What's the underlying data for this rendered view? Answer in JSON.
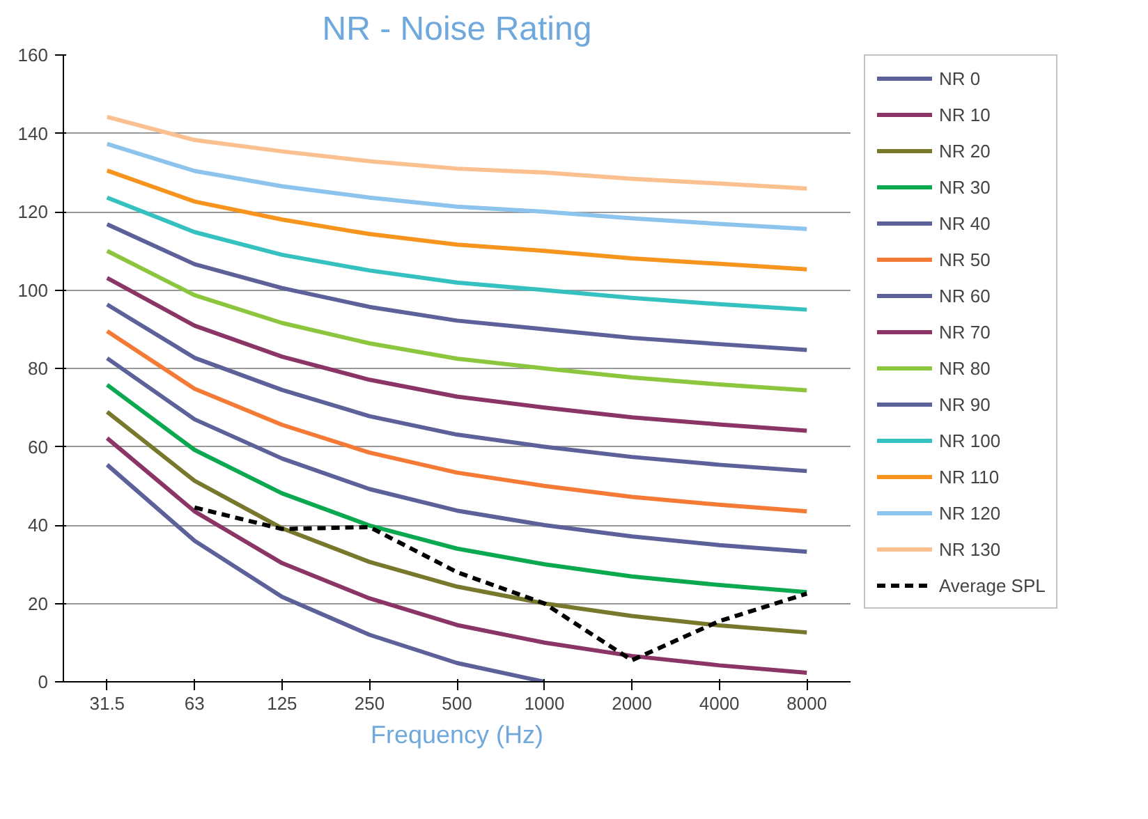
{
  "chart_data": {
    "type": "line",
    "title": "NR - Noise Rating",
    "xlabel": "Frequency (Hz)",
    "categories": [
      "31.5",
      "63",
      "125",
      "250",
      "500",
      "1000",
      "2000",
      "4000",
      "8000"
    ],
    "ylim": [
      0,
      160
    ],
    "yticks": [
      0,
      20,
      40,
      60,
      80,
      100,
      120,
      140,
      160
    ],
    "grid": "y",
    "legend": "right",
    "marker": "none",
    "line_style": "solid",
    "series": [
      {
        "name": "NR 0",
        "color": "#5d6199",
        "values": [
          55.4,
          36,
          21.7,
          12,
          4.8,
          0,
          null,
          null,
          null
        ]
      },
      {
        "name": "NR 10",
        "color": "#8b3567",
        "values": [
          62.2,
          43.5,
          30.3,
          21.3,
          14.5,
          10,
          6.6,
          4.2,
          2.3
        ]
      },
      {
        "name": "NR 20",
        "color": "#77782b",
        "values": [
          68.9,
          51.3,
          39.2,
          30.6,
          24.3,
          20,
          16.8,
          14.4,
          12.6
        ]
      },
      {
        "name": "NR 30",
        "color": "#0aa84f",
        "values": [
          75.8,
          59.2,
          48.1,
          39.9,
          34,
          30,
          26.9,
          24.7,
          22.9
        ]
      },
      {
        "name": "NR 40",
        "color": "#5d6199",
        "values": [
          82.6,
          67,
          57,
          49.2,
          43.7,
          40,
          37.1,
          34.9,
          33.2
        ]
      },
      {
        "name": "NR 50",
        "color": "#f47a35",
        "values": [
          89.5,
          74.8,
          65.6,
          58.5,
          53.4,
          50,
          47.2,
          45.2,
          43.5
        ]
      },
      {
        "name": "NR 60",
        "color": "#5d6199",
        "values": [
          96.3,
          82.7,
          74.5,
          67.8,
          63.1,
          60,
          57.4,
          55.4,
          53.8
        ]
      },
      {
        "name": "NR 70",
        "color": "#8b3567",
        "values": [
          103.1,
          90.9,
          83,
          77.1,
          72.8,
          70,
          67.5,
          65.7,
          64.1
        ]
      },
      {
        "name": "NR 80",
        "color": "#8cc63e",
        "values": [
          110,
          98.7,
          91.6,
          86.4,
          82.5,
          80,
          77.7,
          75.9,
          74.4
        ]
      },
      {
        "name": "NR 90",
        "color": "#5d6199",
        "values": [
          116.8,
          106.6,
          100.5,
          95.7,
          92.2,
          90,
          87.8,
          86.2,
          84.7
        ]
      },
      {
        "name": "NR 100",
        "color": "#35c1c0",
        "values": [
          123.6,
          114.8,
          109,
          105,
          101.9,
          100,
          98,
          96.4,
          95
        ]
      },
      {
        "name": "NR 110",
        "color": "#f7941d",
        "values": [
          130.5,
          122.6,
          118,
          114.3,
          111.6,
          110,
          108.1,
          106.7,
          105.3
        ]
      },
      {
        "name": "NR 120",
        "color": "#8dc4ee",
        "values": [
          137.3,
          130.4,
          126.5,
          123.6,
          121.3,
          120,
          118.3,
          116.9,
          115.6
        ]
      },
      {
        "name": "NR 130",
        "color": "#fbc08f",
        "values": [
          144.2,
          138.3,
          135.4,
          132.9,
          131,
          130,
          128.4,
          127.2,
          125.9
        ]
      },
      {
        "name": "Average SPL",
        "color": "#000000",
        "line_style": "dashed",
        "values": [
          null,
          44.5,
          39,
          39.5,
          28,
          20,
          5.5,
          15.5,
          22.5
        ]
      }
    ]
  }
}
